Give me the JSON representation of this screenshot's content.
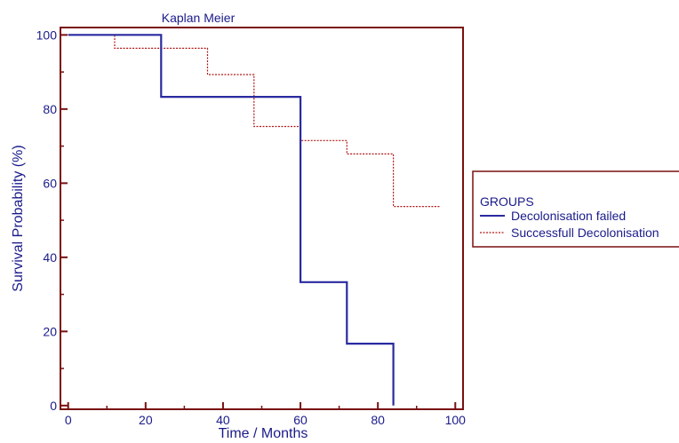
{
  "chart_data": {
    "type": "line",
    "step": true,
    "title": "Kaplan Meier",
    "xlabel": "Time / Months",
    "ylabel": "Survival Probability  (%)",
    "xlim": [
      -2,
      102
    ],
    "ylim": [
      -1,
      102
    ],
    "x_ticks": [
      0,
      20,
      40,
      60,
      80,
      100
    ],
    "y_ticks": [
      0,
      20,
      40,
      60,
      80,
      100
    ],
    "x_minor_ticks": [
      10,
      30,
      50,
      70,
      90
    ],
    "y_minor_ticks": [
      10,
      30,
      50,
      70,
      90
    ],
    "grid": false,
    "legend": {
      "title": "GROUPS",
      "placement": "right"
    },
    "colors": {
      "frame": "#7a1010",
      "text": "#1a1a8a"
    },
    "series": [
      {
        "name": "Decolonisation failed",
        "color": "#2a2aa0",
        "style": "solid",
        "x": [
          0,
          24,
          24,
          60,
          60,
          72,
          72,
          84,
          84
        ],
        "y": [
          100,
          100,
          83.3,
          83.3,
          33.3,
          33.3,
          16.7,
          16.7,
          0
        ]
      },
      {
        "name": "Successfull Decolonisation",
        "color": "#b01818",
        "style": "dotted",
        "x": [
          0,
          12,
          12,
          36,
          36,
          48,
          48,
          60,
          60,
          72,
          72,
          84,
          84,
          96
        ],
        "y": [
          100,
          100,
          96.4,
          96.4,
          89.3,
          89.3,
          75.3,
          75.3,
          71.5,
          71.5,
          67.9,
          67.9,
          53.7,
          53.7
        ]
      }
    ]
  }
}
